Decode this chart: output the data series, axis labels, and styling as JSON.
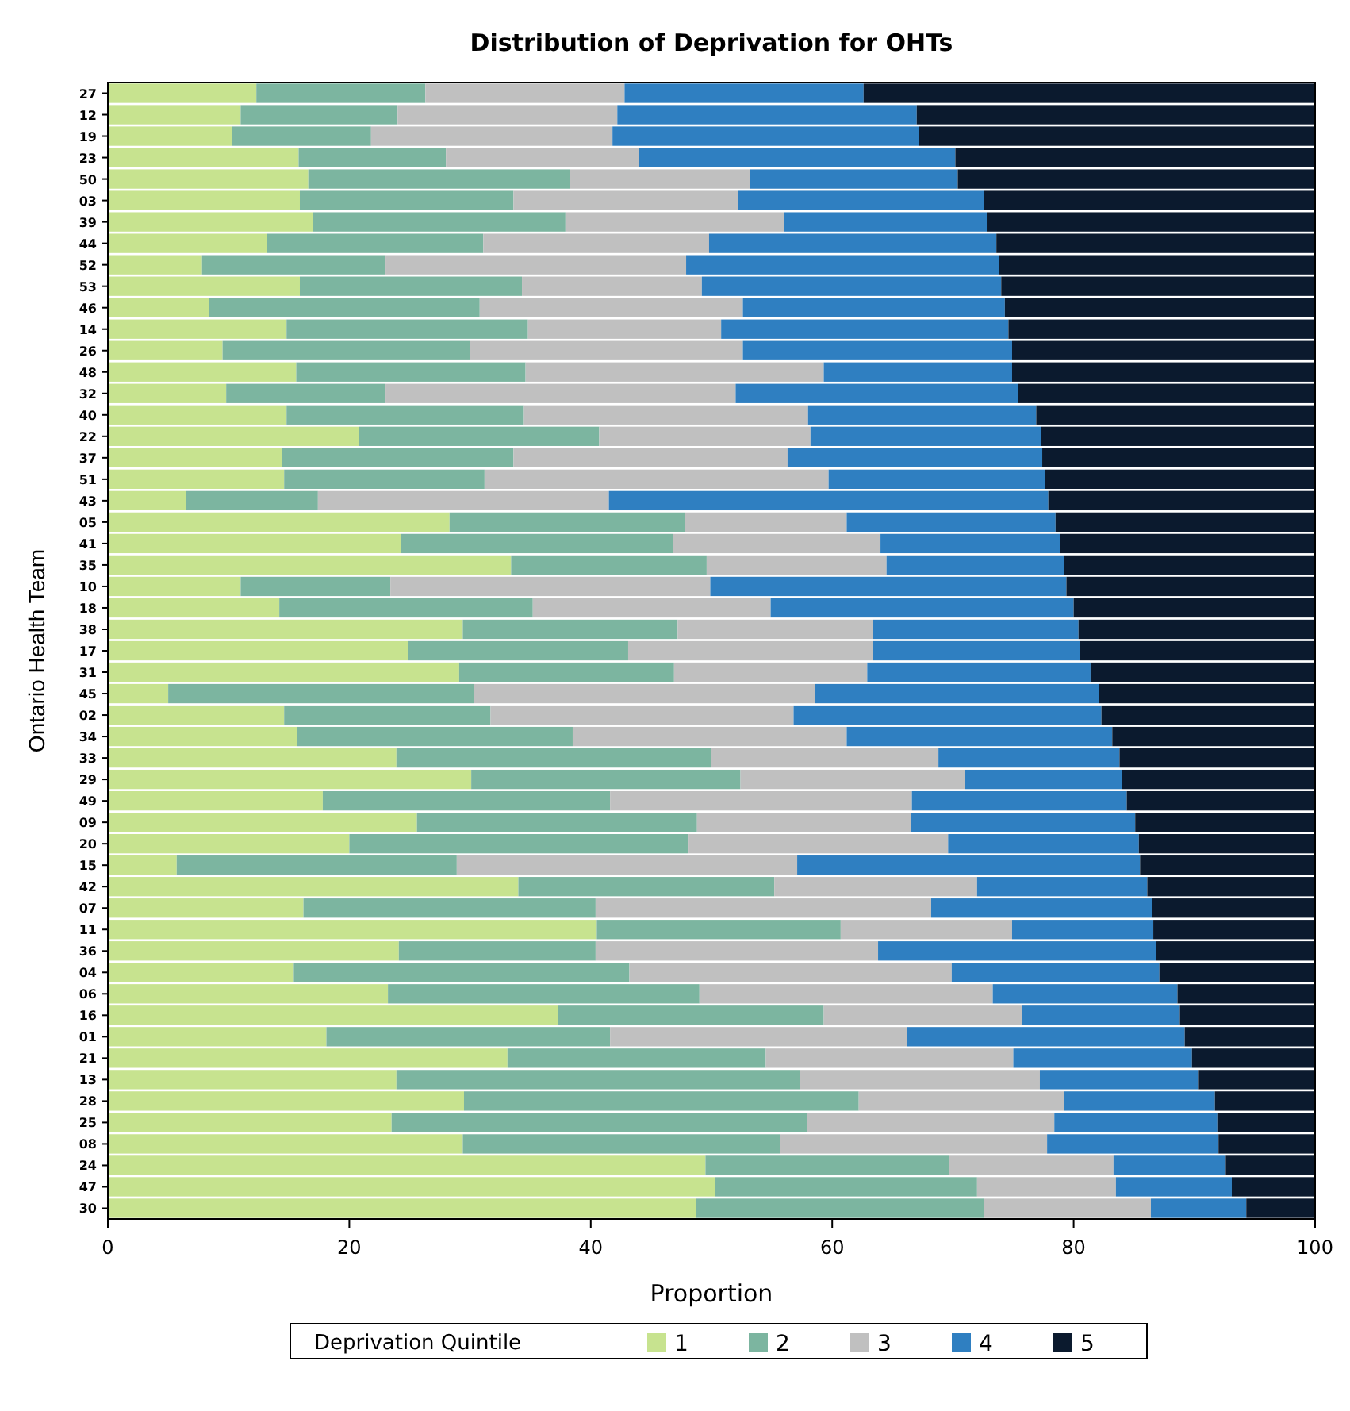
{
  "chart_data": {
    "type": "bar",
    "orientation": "horizontal",
    "stacked": true,
    "title": "Distribution of Deprivation for OHTs",
    "xlabel": "Proportion",
    "ylabel": "Ontario Health Team",
    "legend_title": "Deprivation Quintile",
    "legend": "bottom",
    "grid": false,
    "xlim": [
      0,
      100
    ],
    "xticks": [
      0,
      20,
      40,
      60,
      80,
      100
    ],
    "categories": [
      "27",
      "12",
      "19",
      "23",
      "50",
      "03",
      "39",
      "44",
      "52",
      "53",
      "46",
      "14",
      "26",
      "48",
      "32",
      "40",
      "22",
      "37",
      "51",
      "43",
      "05",
      "41",
      "35",
      "10",
      "18",
      "38",
      "17",
      "31",
      "45",
      "02",
      "34",
      "33",
      "29",
      "49",
      "09",
      "20",
      "15",
      "42",
      "07",
      "11",
      "36",
      "04",
      "06",
      "16",
      "01",
      "21",
      "13",
      "28",
      "25",
      "08",
      "24",
      "47",
      "30"
    ],
    "series": [
      {
        "name": "1",
        "color": "#c7e38f",
        "values": [
          12.3,
          11.0,
          10.3,
          15.8,
          16.6,
          15.9,
          17.0,
          13.2,
          7.8,
          15.9,
          8.4,
          14.8,
          9.5,
          15.6,
          9.8,
          14.8,
          20.8,
          14.4,
          14.6,
          6.5,
          28.3,
          24.3,
          33.4,
          11.0,
          14.2,
          29.4,
          24.9,
          29.1,
          5.0,
          14.6,
          15.7,
          23.9,
          30.1,
          17.8,
          25.6,
          20.0,
          5.7,
          34.0,
          16.2,
          40.5,
          24.1,
          15.4,
          23.2,
          37.3,
          18.1,
          33.1,
          23.9,
          29.5,
          23.5,
          29.4,
          49.5,
          50.3,
          48.7
        ]
      },
      {
        "name": "2",
        "color": "#7cb5a0",
        "values": [
          14.0,
          13.0,
          11.5,
          12.2,
          21.7,
          17.7,
          20.9,
          17.9,
          15.2,
          18.4,
          22.4,
          20.0,
          20.5,
          19.0,
          13.2,
          19.6,
          19.9,
          19.2,
          16.6,
          10.9,
          19.5,
          22.5,
          16.2,
          12.4,
          21.0,
          17.8,
          18.2,
          17.8,
          25.3,
          17.1,
          22.8,
          26.1,
          22.3,
          23.8,
          23.2,
          28.1,
          23.2,
          21.2,
          24.2,
          20.2,
          16.3,
          27.8,
          25.8,
          22.0,
          23.5,
          21.4,
          33.4,
          32.7,
          34.4,
          26.3,
          20.2,
          21.7,
          23.9
        ]
      },
      {
        "name": "3",
        "color": "#c0c0c0",
        "values": [
          16.5,
          18.2,
          20.0,
          16.0,
          14.9,
          18.6,
          18.1,
          18.7,
          24.9,
          14.9,
          21.8,
          16.0,
          22.6,
          24.7,
          29.0,
          23.6,
          17.5,
          22.7,
          28.5,
          24.1,
          13.4,
          17.2,
          14.9,
          26.5,
          19.7,
          16.2,
          20.3,
          16.0,
          28.3,
          25.1,
          22.7,
          18.8,
          18.6,
          25.0,
          17.7,
          21.5,
          28.2,
          16.8,
          27.8,
          14.2,
          23.4,
          26.7,
          24.3,
          16.4,
          24.6,
          20.5,
          19.9,
          17.0,
          20.5,
          22.1,
          13.6,
          11.5,
          13.8
        ]
      },
      {
        "name": "4",
        "color": "#2f7fc1",
        "values": [
          19.8,
          24.8,
          25.4,
          26.2,
          17.2,
          20.4,
          16.8,
          23.8,
          25.9,
          24.8,
          21.7,
          23.8,
          22.3,
          15.6,
          23.4,
          18.9,
          19.1,
          21.1,
          17.9,
          36.4,
          17.3,
          14.9,
          14.7,
          29.5,
          25.1,
          17.0,
          17.1,
          18.5,
          23.5,
          25.5,
          22.0,
          15.0,
          13.0,
          17.8,
          18.6,
          15.8,
          28.4,
          14.1,
          18.3,
          11.7,
          23.0,
          17.2,
          15.3,
          13.1,
          23.0,
          14.8,
          13.1,
          12.5,
          13.5,
          14.2,
          9.3,
          9.6,
          7.9
        ]
      },
      {
        "name": "5",
        "color": "#0b1a2e",
        "values": [
          37.4,
          33.0,
          32.8,
          29.8,
          29.6,
          27.4,
          27.2,
          26.4,
          26.2,
          26.0,
          25.7,
          25.4,
          25.1,
          25.1,
          24.6,
          23.1,
          22.7,
          22.6,
          22.4,
          22.1,
          21.5,
          21.1,
          20.8,
          20.6,
          20.0,
          19.6,
          19.5,
          18.6,
          17.9,
          17.7,
          16.8,
          16.2,
          16.0,
          15.6,
          14.9,
          14.6,
          14.5,
          13.9,
          13.5,
          13.4,
          13.2,
          12.9,
          11.4,
          11.2,
          10.8,
          10.2,
          9.7,
          8.3,
          8.1,
          8.0,
          7.4,
          6.9,
          5.7
        ]
      }
    ]
  }
}
